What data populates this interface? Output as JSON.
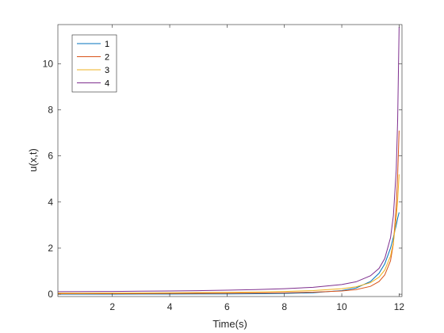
{
  "chart_data": {
    "type": "line",
    "title": "",
    "xlabel": "Time(s)",
    "ylabel": "u(x,t)",
    "xlim": [
      0.1,
      12.1
    ],
    "ylim": [
      -0.1,
      11.7
    ],
    "xticks": [
      2,
      4,
      6,
      8,
      10,
      12
    ],
    "yticks": [
      0,
      2,
      4,
      6,
      8,
      10
    ],
    "grid": false,
    "legend_position": "top-left",
    "series": [
      {
        "name": "1",
        "color": "#0072BD",
        "x": [
          0.1,
          1,
          2,
          3,
          4,
          5,
          6,
          7,
          8,
          9,
          10,
          10.5,
          11,
          11.3,
          11.5,
          11.7,
          11.8,
          11.9,
          11.95,
          12.0
        ],
        "y": [
          0.003,
          0.0036,
          0.0045,
          0.0057,
          0.0074,
          0.0099,
          0.014,
          0.021,
          0.034,
          0.064,
          0.16,
          0.27,
          0.55,
          0.91,
          1.32,
          2.0,
          2.47,
          3.0,
          3.3,
          3.55
        ]
      },
      {
        "name": "2",
        "color": "#D95319",
        "x": [
          0.1,
          1,
          2,
          3,
          4,
          5,
          6,
          7,
          8,
          9,
          10,
          10.5,
          11,
          11.3,
          11.5,
          11.7,
          11.8,
          11.9,
          11.95,
          12.0
        ],
        "y": [
          0.021,
          0.023,
          0.025,
          0.028,
          0.032,
          0.037,
          0.043,
          0.052,
          0.065,
          0.088,
          0.14,
          0.2,
          0.34,
          0.55,
          0.84,
          1.45,
          2.2,
          3.8,
          5.2,
          7.1
        ]
      },
      {
        "name": "3",
        "color": "#EDB120",
        "x": [
          0.1,
          1,
          2,
          3,
          4,
          5,
          6,
          7,
          8,
          9,
          10,
          10.5,
          11,
          11.3,
          11.5,
          11.7,
          11.8,
          11.9,
          11.95,
          12.0
        ],
        "y": [
          0.045,
          0.048,
          0.052,
          0.057,
          0.063,
          0.071,
          0.082,
          0.098,
          0.12,
          0.16,
          0.24,
          0.32,
          0.5,
          0.74,
          1.05,
          1.65,
          2.25,
          3.3,
          4.1,
          5.2
        ]
      },
      {
        "name": "4",
        "color": "#7E2F8E",
        "x": [
          0.1,
          1,
          2,
          3,
          4,
          5,
          6,
          7,
          8,
          9,
          10,
          10.5,
          11,
          11.3,
          11.5,
          11.7,
          11.8,
          11.9,
          11.95,
          12.0
        ],
        "y": [
          0.11,
          0.115,
          0.12,
          0.13,
          0.14,
          0.155,
          0.175,
          0.2,
          0.24,
          0.3,
          0.42,
          0.54,
          0.8,
          1.12,
          1.55,
          2.45,
          3.4,
          5.4,
          7.6,
          11.6
        ]
      }
    ]
  }
}
